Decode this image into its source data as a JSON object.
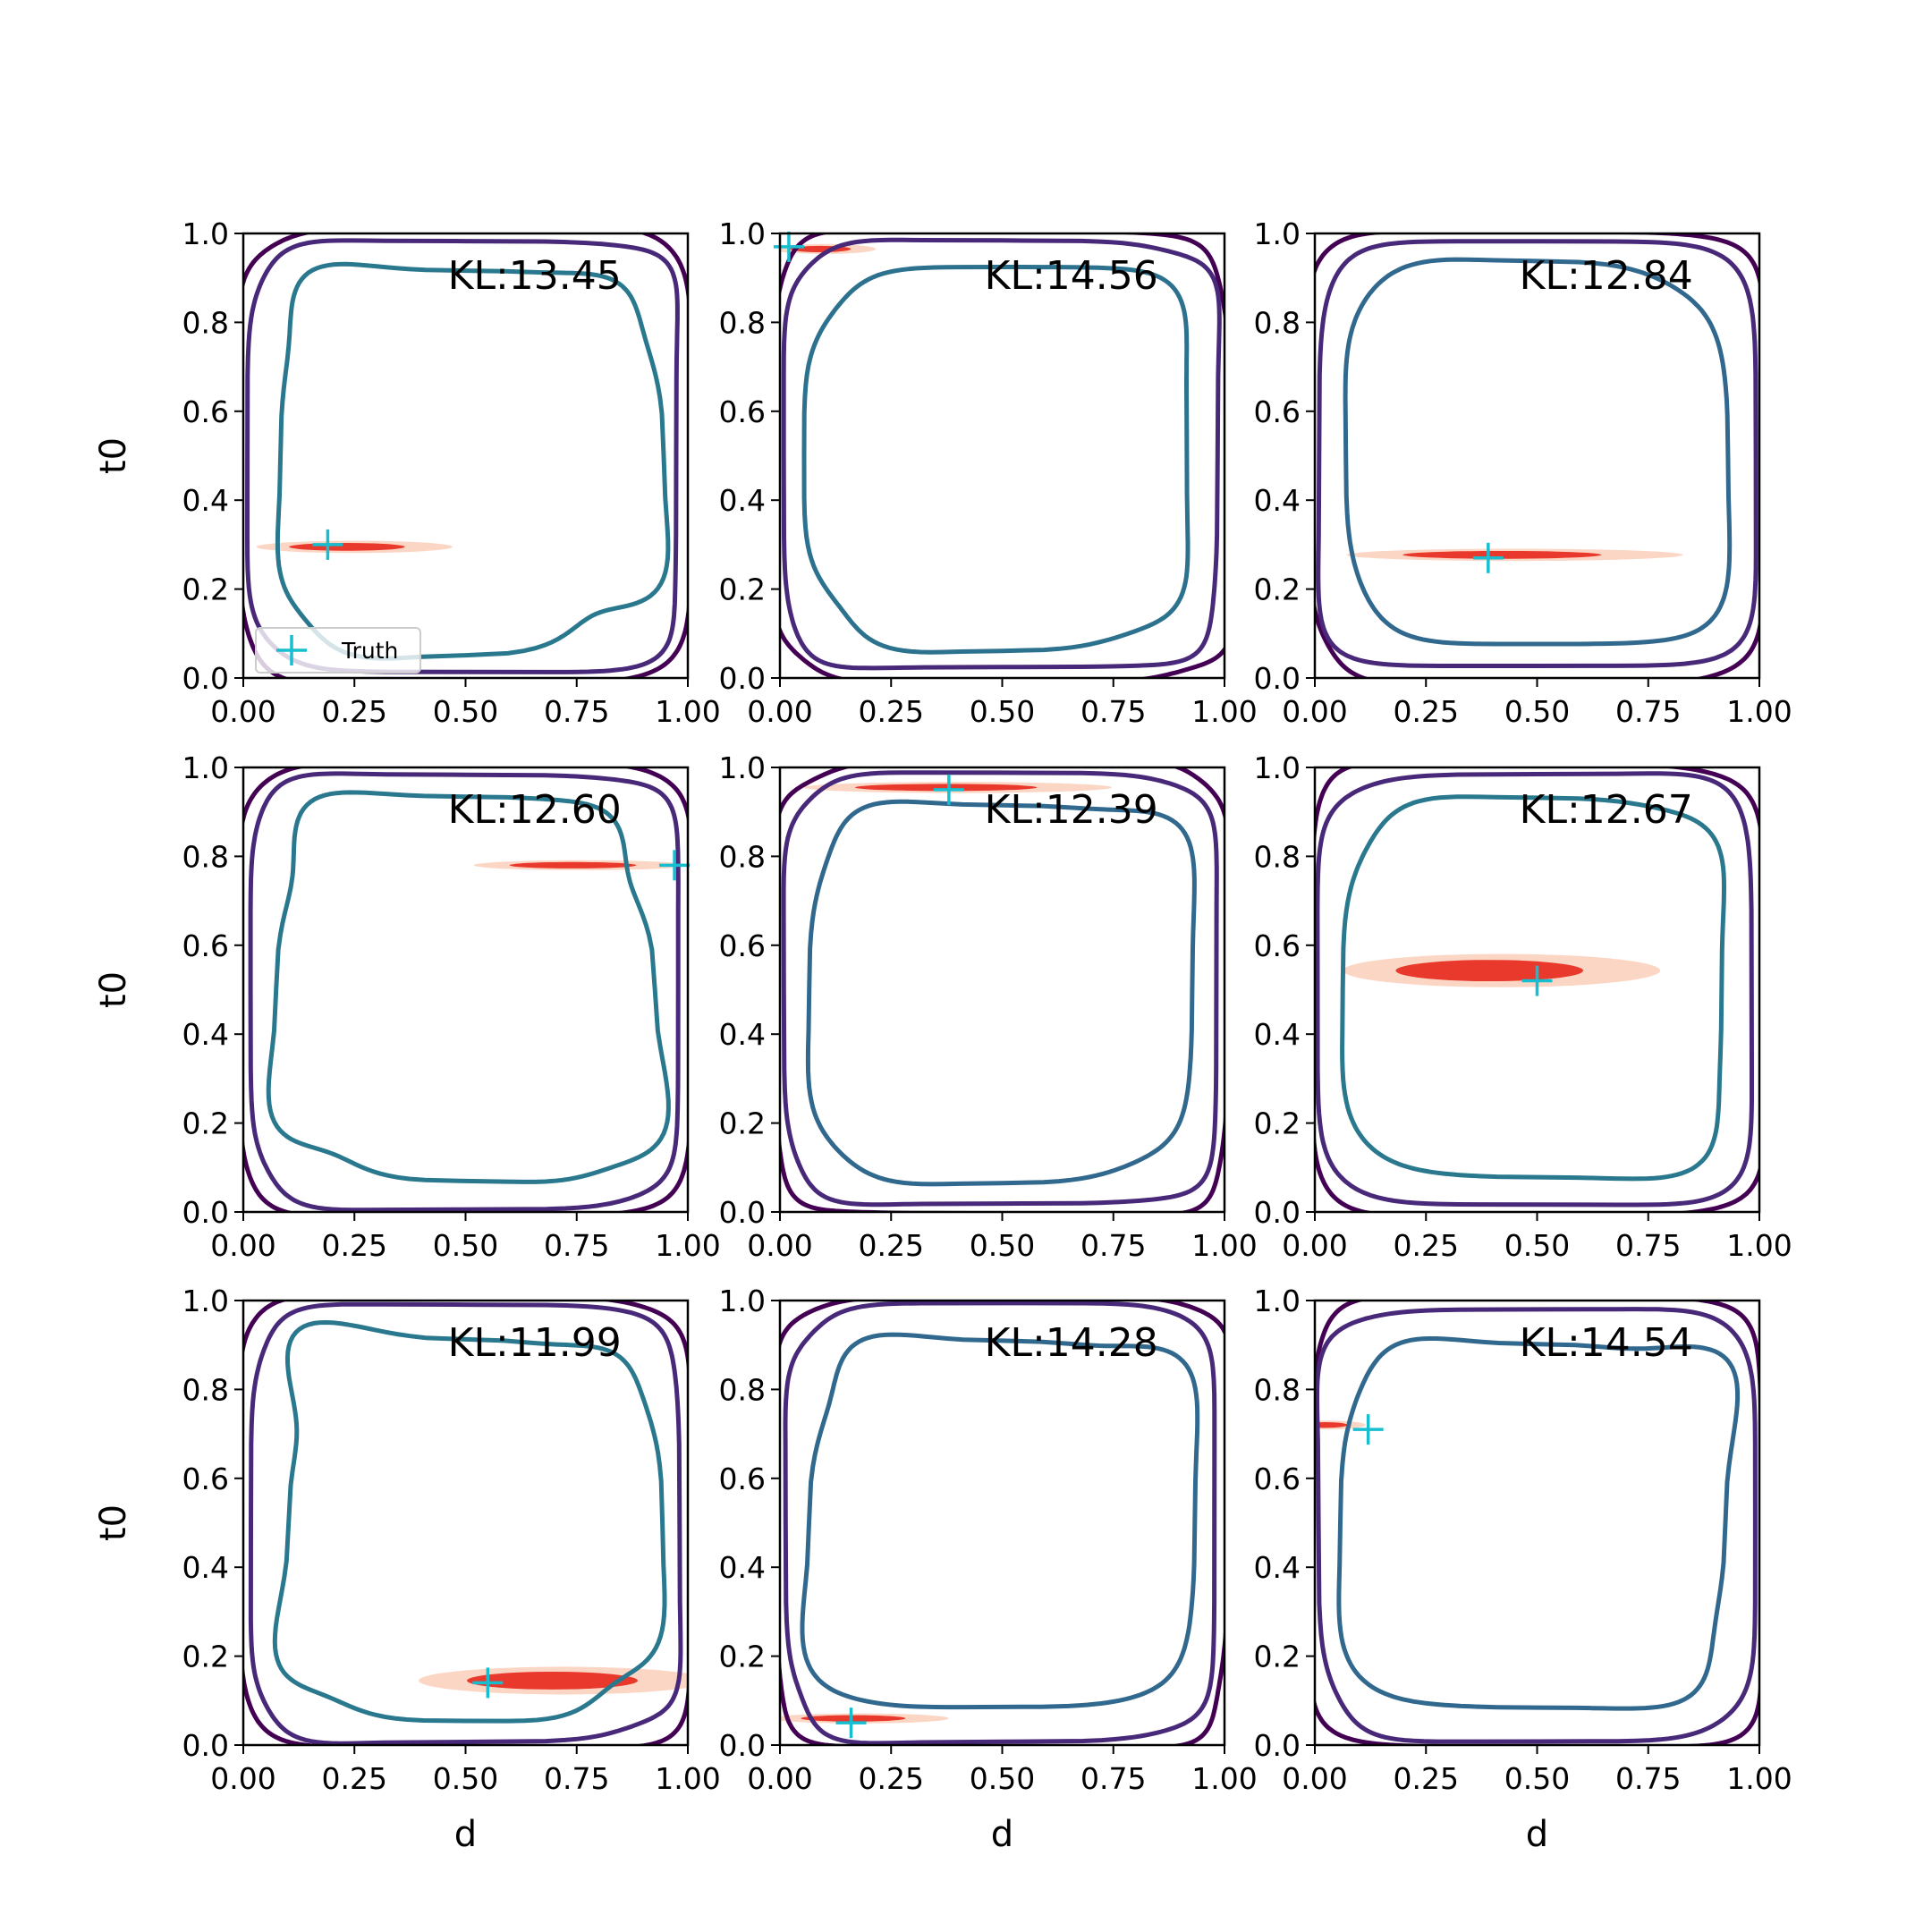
{
  "chart_data": {
    "type": "contour",
    "grid": {
      "rows": 3,
      "cols": 3
    },
    "xlabel": "d",
    "ylabel": "t0",
    "xlim": [
      0,
      1
    ],
    "ylim": [
      0,
      1
    ],
    "xticks": [
      "0.00",
      "0.25",
      "0.50",
      "0.75",
      "1.00"
    ],
    "yticks": [
      "0.0",
      "0.2",
      "0.4",
      "0.6",
      "0.8",
      "1.0"
    ],
    "legend": {
      "label": "Truth",
      "position": "lower-left",
      "panel": 0
    },
    "colors": {
      "truth_marker": "#17becf",
      "posterior_core": "#e8392c",
      "posterior_halo": "#fcd6c4",
      "contour_outer": "#440154",
      "contour_mid": "#482878",
      "contour_inner": "#2a788e",
      "contour_inner_alt": "#31688e"
    },
    "panels": [
      {
        "kl_label": "KL:13.45",
        "truth": [
          0.19,
          0.3
        ],
        "posterior": {
          "center": [
            0.25,
            0.295
          ],
          "width": 0.42,
          "height": 0.022
        },
        "inner_color": "#2a788e"
      },
      {
        "kl_label": "KL:14.56",
        "truth": [
          0.02,
          0.97
        ],
        "posterior": {
          "center": [
            0.1,
            0.965
          ],
          "width": 0.22,
          "height": 0.018
        },
        "inner_color": "#2c728e"
      },
      {
        "kl_label": "KL:12.84",
        "truth": [
          0.39,
          0.27
        ],
        "posterior": {
          "center": [
            0.45,
            0.277
          ],
          "width": 0.72,
          "height": 0.022
        },
        "inner_color": "#31688e"
      },
      {
        "kl_label": "KL:12.60",
        "truth": [
          0.97,
          0.78
        ],
        "posterior": {
          "center": [
            0.76,
            0.78
          ],
          "width": 0.46,
          "height": 0.018
        },
        "inner_color": "#2a788e"
      },
      {
        "kl_label": "KL:12.39",
        "truth": [
          0.38,
          0.95
        ],
        "posterior": {
          "center": [
            0.4,
            0.955
          ],
          "width": 0.66,
          "height": 0.02
        },
        "inner_color": "#31688e"
      },
      {
        "kl_label": "KL:12.67",
        "truth": [
          0.5,
          0.52
        ],
        "posterior": {
          "center": [
            0.42,
            0.543
          ],
          "width": 0.68,
          "height": 0.06
        },
        "inner_color": "#2a788e"
      },
      {
        "kl_label": "KL:11.99",
        "truth": [
          0.55,
          0.14
        ],
        "posterior": {
          "center": [
            0.72,
            0.145
          ],
          "width": 0.62,
          "height": 0.05
        },
        "inner_color": "#2a788e"
      },
      {
        "kl_label": "KL:14.28",
        "truth": [
          0.16,
          0.05
        ],
        "posterior": {
          "center": [
            0.18,
            0.06
          ],
          "width": 0.38,
          "height": 0.018
        },
        "inner_color": "#31688e"
      },
      {
        "kl_label": "KL:14.54",
        "truth": [
          0.12,
          0.71
        ],
        "posterior": {
          "center": [
            0.03,
            0.72
          ],
          "width": 0.16,
          "height": 0.016
        },
        "inner_color": "#31688e"
      }
    ]
  }
}
